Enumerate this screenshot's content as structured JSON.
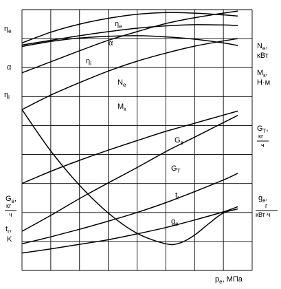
{
  "chart_data": {
    "type": "line",
    "x_axis": {
      "label": "p",
      "label_sub": "e",
      "unit": ", МПа",
      "tick_labels": []
    },
    "left_axis_labels": [
      {
        "main": "η",
        "sub": "e"
      },
      {
        "main": "α",
        "sub": ""
      },
      {
        "main": "η",
        "sub": "i"
      },
      {
        "main": "G",
        "sub": "в",
        "suffix": ",",
        "fraction": {
          "num": "кг",
          "den": "ч"
        }
      },
      {
        "main": "t",
        "sub": "г",
        "suffix": ",",
        "line2": "K"
      }
    ],
    "right_axis_labels": [
      {
        "main": "N",
        "sub": "e",
        "suffix": ",",
        "line2": "кВт"
      },
      {
        "main": "M",
        "sub": "к",
        "suffix": ",",
        "line2": "Н·м"
      },
      {
        "main": "G",
        "sub": "T",
        "suffix": ",",
        "fraction": {
          "num": "кг",
          "den": "ч"
        }
      },
      {
        "main": "g",
        "sub": "e",
        "suffix": ",",
        "fraction": {
          "num": "г",
          "den": "кВт·ч"
        }
      }
    ],
    "x_domain": [
      0,
      8
    ],
    "y_domain": [
      0,
      9
    ],
    "grid": true,
    "series": [
      {
        "name": "η",
        "name_sub": "e",
        "points": [
          [
            0,
            7.85
          ],
          [
            1,
            8.22
          ],
          [
            2,
            8.5
          ],
          [
            3,
            8.7
          ],
          [
            4,
            8.84
          ],
          [
            5,
            8.9
          ],
          [
            6,
            8.88
          ],
          [
            7,
            8.82
          ],
          [
            7.5,
            8.78
          ]
        ]
      },
      {
        "name": "α",
        "name_sub": "",
        "points": [
          [
            0,
            7.78
          ],
          [
            1,
            7.94
          ],
          [
            2,
            8.1
          ],
          [
            3,
            8.24
          ],
          [
            4,
            8.36
          ],
          [
            5,
            8.44
          ],
          [
            6,
            8.48
          ],
          [
            7,
            8.47
          ],
          [
            7.5,
            8.45
          ]
        ]
      },
      {
        "name": "η",
        "name_sub": "i",
        "points": [
          [
            0,
            7.73
          ],
          [
            1,
            7.9
          ],
          [
            2,
            8.02
          ],
          [
            3,
            8.08
          ],
          [
            4,
            8.1
          ],
          [
            5,
            8.06
          ],
          [
            6,
            7.98
          ],
          [
            7,
            7.85
          ],
          [
            7.5,
            7.76
          ]
        ]
      },
      {
        "name": "N",
        "name_sub": "e",
        "points": [
          [
            0,
            6.82
          ],
          [
            1,
            7.2
          ],
          [
            2,
            7.58
          ],
          [
            3,
            7.94
          ],
          [
            4,
            8.24
          ],
          [
            5,
            8.52
          ],
          [
            6,
            8.72
          ],
          [
            7,
            8.88
          ],
          [
            7.5,
            8.95
          ]
        ]
      },
      {
        "name": "M",
        "name_sub": "к",
        "points": [
          [
            0,
            5.55
          ],
          [
            1,
            6.05
          ],
          [
            2,
            6.48
          ],
          [
            3,
            6.88
          ],
          [
            4,
            7.22
          ],
          [
            5,
            7.5
          ],
          [
            6,
            7.74
          ],
          [
            7,
            7.92
          ],
          [
            7.5,
            8.0
          ]
        ]
      },
      {
        "name": "G",
        "name_sub": "в",
        "points": [
          [
            0,
            3.0
          ],
          [
            1,
            3.42
          ],
          [
            2,
            3.8
          ],
          [
            3,
            4.15
          ],
          [
            4,
            4.48
          ],
          [
            5,
            4.8
          ],
          [
            6,
            5.08
          ],
          [
            7,
            5.36
          ],
          [
            7.5,
            5.5
          ]
        ]
      },
      {
        "name": "G",
        "name_sub": "T",
        "points": [
          [
            0,
            1.35
          ],
          [
            1,
            1.9
          ],
          [
            2,
            2.48
          ],
          [
            3,
            3.02
          ],
          [
            4,
            3.55
          ],
          [
            5,
            4.1
          ],
          [
            6,
            4.6
          ],
          [
            7,
            5.1
          ],
          [
            7.5,
            5.35
          ]
        ]
      },
      {
        "name": "t",
        "name_sub": "г",
        "points": [
          [
            0,
            0.92
          ],
          [
            1,
            1.16
          ],
          [
            2,
            1.42
          ],
          [
            3,
            1.7
          ],
          [
            4,
            2.0
          ],
          [
            5,
            2.34
          ],
          [
            6,
            2.72
          ],
          [
            7,
            3.12
          ],
          [
            7.5,
            3.35
          ]
        ]
      },
      {
        "name": "",
        "name_sub": "",
        "points": [
          [
            0,
            0.6
          ],
          [
            1,
            0.74
          ],
          [
            2,
            0.9
          ],
          [
            3,
            1.06
          ],
          [
            4,
            1.26
          ],
          [
            5,
            1.48
          ],
          [
            6,
            1.74
          ],
          [
            7,
            2.02
          ],
          [
            7.5,
            2.2
          ]
        ]
      },
      {
        "name": "g",
        "name_sub": "e",
        "points": [
          [
            0,
            5.55
          ],
          [
            1,
            4.12
          ],
          [
            2,
            2.94
          ],
          [
            3,
            1.98
          ],
          [
            4,
            1.28
          ],
          [
            5,
            0.92
          ],
          [
            5.5,
            0.95
          ],
          [
            6,
            1.22
          ],
          [
            6.5,
            1.62
          ],
          [
            7,
            1.98
          ],
          [
            7.5,
            2.12
          ]
        ]
      }
    ]
  }
}
